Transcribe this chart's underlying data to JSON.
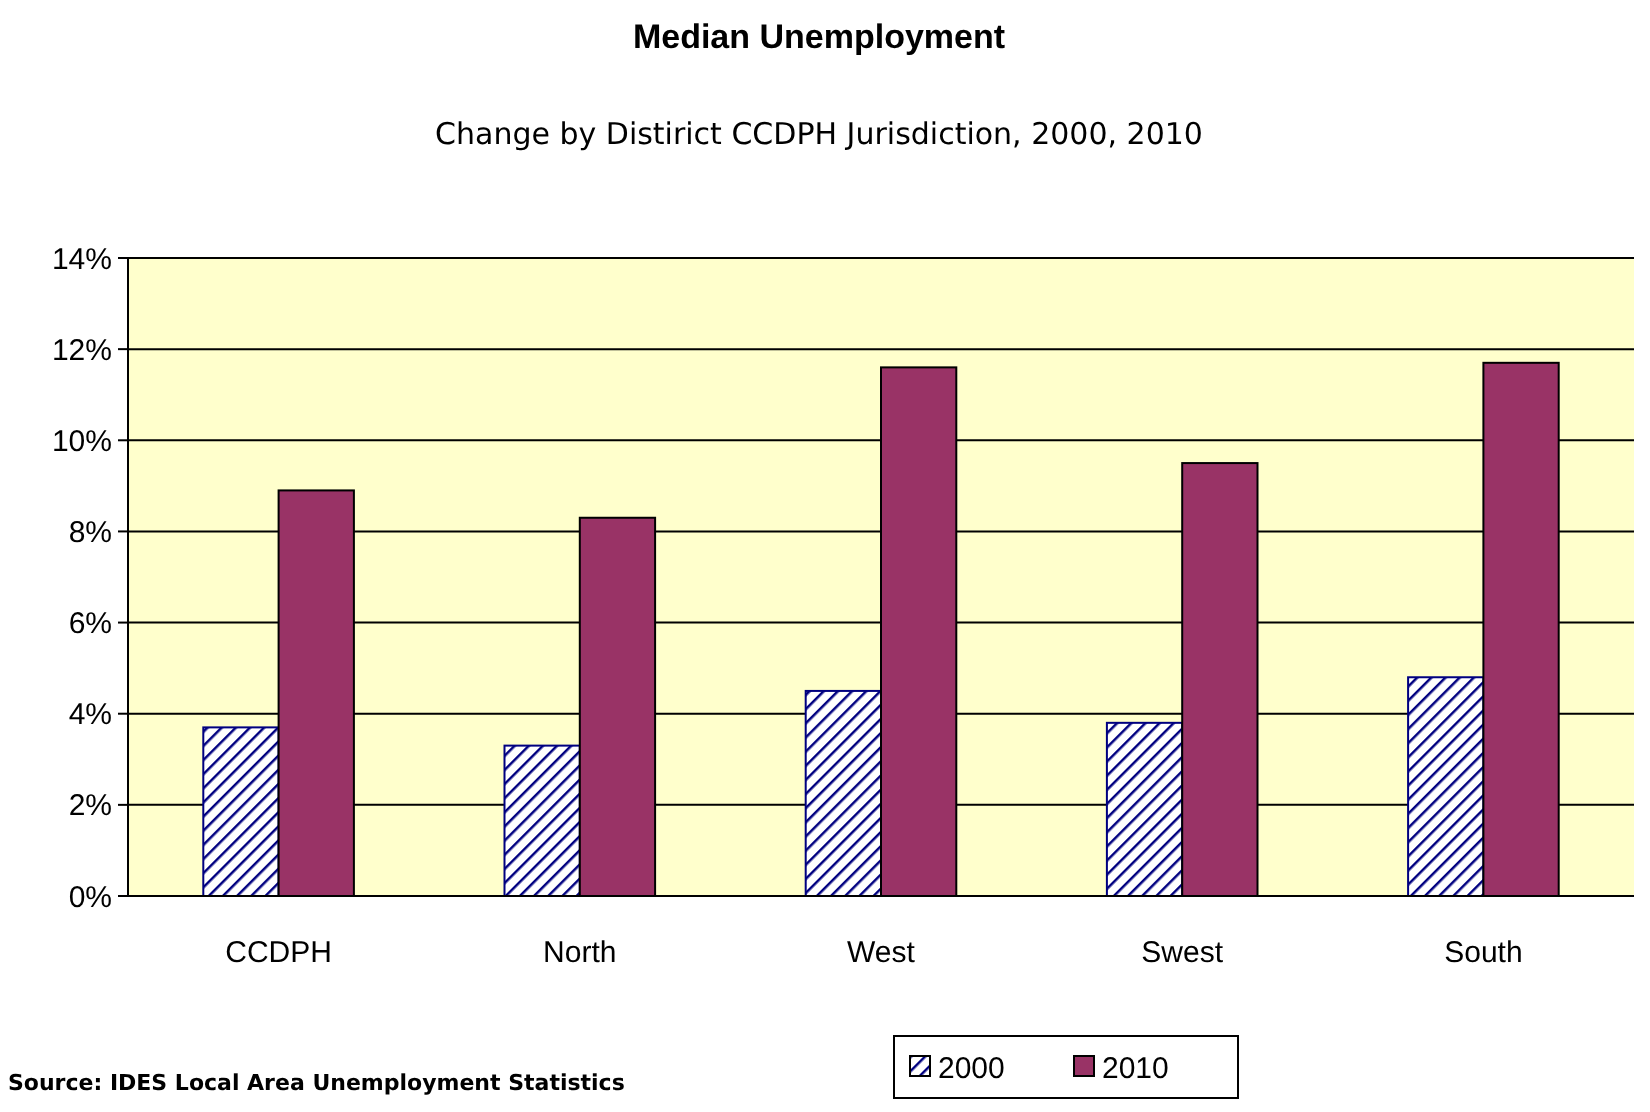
{
  "chart_data": {
    "type": "bar",
    "title": "Median Unemployment",
    "subtitle": "Change by Distirict CCDPH Jurisdiction, 2000, 2010",
    "categories": [
      "CCDPH",
      "North",
      "West",
      "Swest",
      "South"
    ],
    "series": [
      {
        "name": "2000",
        "color": "#000080",
        "values": [
          3.7,
          3.3,
          4.5,
          3.8,
          4.8
        ]
      },
      {
        "name": "2010",
        "color": "#993366",
        "values": [
          8.9,
          8.3,
          11.6,
          9.5,
          11.7
        ]
      }
    ],
    "ylim": [
      0,
      14
    ],
    "yticks": [
      {
        "value": 0,
        "label": "0%"
      },
      {
        "value": 2,
        "label": "2%"
      },
      {
        "value": 4,
        "label": "4%"
      },
      {
        "value": 6,
        "label": "6%"
      },
      {
        "value": 8,
        "label": "8%"
      },
      {
        "value": 10,
        "label": "10%"
      },
      {
        "value": 12,
        "label": "12%"
      },
      {
        "value": 14,
        "label": "14%"
      }
    ],
    "grid": "y",
    "legend": "bottom right",
    "annotations": [
      "Source: IDES Local Area Unemployment Statistics"
    ]
  }
}
